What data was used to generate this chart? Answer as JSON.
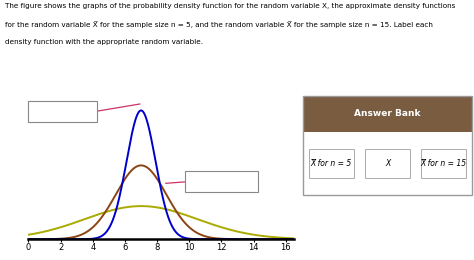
{
  "xmin": 0,
  "xmax": 16,
  "xticks": [
    0,
    2,
    4,
    6,
    8,
    10,
    12,
    14,
    16
  ],
  "mean": 7,
  "curves": [
    {
      "color": "#aaaa00",
      "std": 3.5
    },
    {
      "color": "#8B4513",
      "std": 1.57
    },
    {
      "color": "#0000cc",
      "std": 0.9
    }
  ],
  "answer_bank_header": "Answer Bank",
  "answer_bank_items": [
    "X̅ for n = 5",
    "X",
    "X̅ for n = 15"
  ],
  "answer_bank_header_color": "#7a5c40",
  "connector_color": "#cc3366",
  "text_line1": "The figure shows the graphs of the probability density function for the random variable X, the approximate density functions",
  "text_line2": "for the random variable X̅ for the sample size n = 5, and the random variable X̅ for the sample size n = 15. Label each",
  "text_line3": "density function with the appropriate random variable."
}
